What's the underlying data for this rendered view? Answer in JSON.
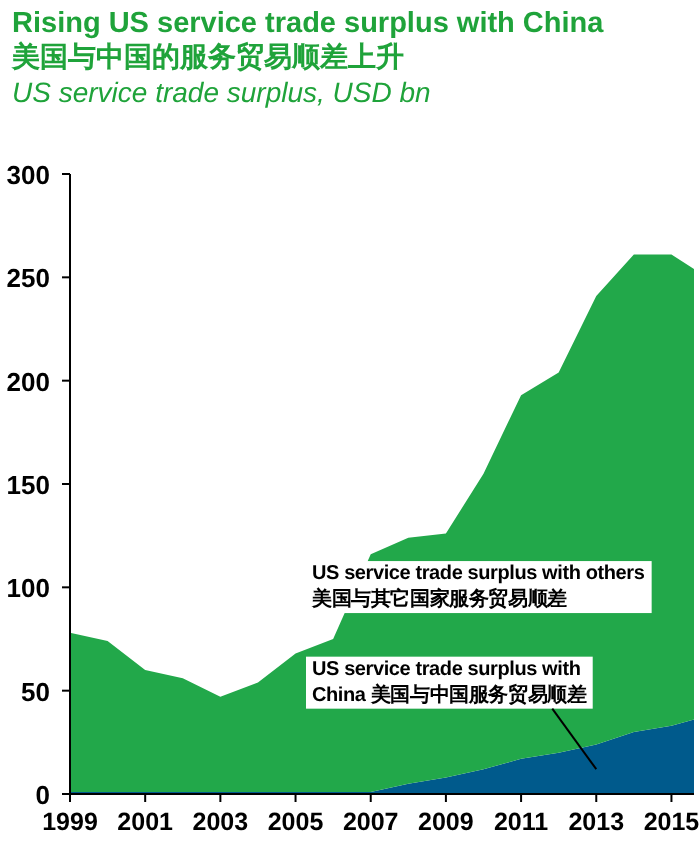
{
  "chart_data": {
    "type": "area",
    "stacked": true,
    "title": "Rising US service trade surplus with China",
    "subtitle": "美国与中国的服务贸易顺差上升",
    "ylabel": "US service trade surplus, USD bn",
    "x": [
      1999,
      2000,
      2001,
      2002,
      2003,
      2004,
      2005,
      2006,
      2007,
      2008,
      2009,
      2010,
      2011,
      2012,
      2013,
      2014,
      2015,
      2015.6
    ],
    "series": [
      {
        "name": "US service trade surplus with\nChina 美国与中国服务贸易顺差",
        "color": "#005a8c",
        "values": [
          1,
          1,
          1,
          1,
          1,
          1,
          1,
          1,
          1,
          5,
          8,
          12,
          17,
          20,
          24,
          30,
          33,
          36
        ]
      },
      {
        "name": "US service trade surplus with others\n美国与其它国家服务贸易顺差",
        "color": "#22a84a",
        "values": [
          77,
          73,
          59,
          55,
          46,
          53,
          67,
          74,
          115,
          119,
          118,
          143,
          176,
          184,
          217,
          231,
          228,
          218
        ]
      }
    ],
    "xlim": [
      1999,
      2015.6
    ],
    "xticks": [
      1999,
      2001,
      2003,
      2005,
      2007,
      2009,
      2011,
      2013,
      2015
    ],
    "ylim": [
      0,
      300
    ],
    "yticks": [
      0,
      50,
      100,
      150,
      200,
      250,
      300
    ]
  }
}
